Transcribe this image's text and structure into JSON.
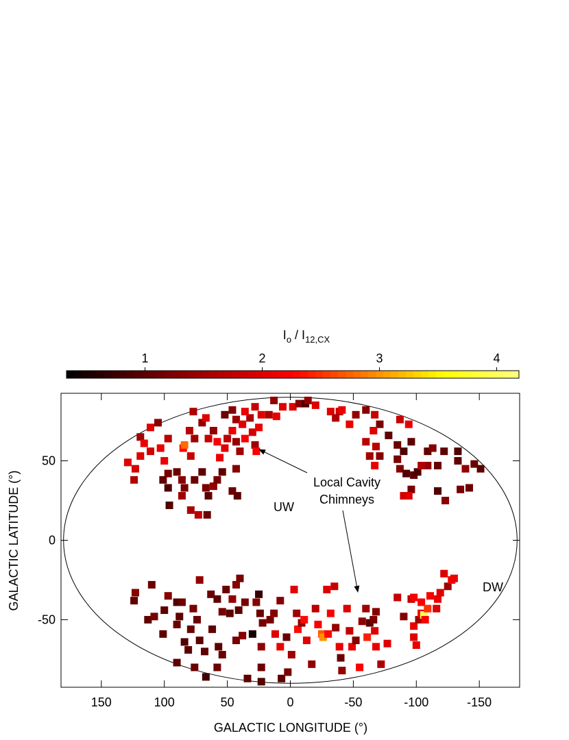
{
  "chart_data": {
    "type": "scatter",
    "colorbar_label": {
      "main1": "I",
      "sub1": "o",
      "main2": " / I",
      "sub2": "12,CX"
    },
    "clim": [
      0.33,
      4.19
    ],
    "cticks": [
      1,
      2,
      3,
      4
    ],
    "colormap": [
      "#000000",
      "#5a0000",
      "#b00000",
      "#ff0000",
      "#ff8000",
      "#ffff00",
      "#ffff80"
    ],
    "xlabel": "GALACTIC LONGITUDE (°)",
    "ylabel": "GALACTIC LATITUDE (°)",
    "xlim": [
      182,
      -182
    ],
    "ylim": [
      -92.5,
      92.5
    ],
    "xticks": [
      150,
      100,
      50,
      0,
      -50,
      -100,
      -150
    ],
    "yticks": [
      50,
      0,
      -50
    ],
    "annotations": [
      "Local Cavity",
      "Chimneys",
      "UW",
      "DW"
    ],
    "x": [
      129,
      123,
      124,
      119,
      119,
      116,
      111,
      105,
      111,
      103,
      97,
      100,
      97,
      101,
      97,
      96,
      90,
      86,
      84,
      86,
      79,
      73,
      66,
      76,
      70,
      67,
      61,
      65,
      58,
      54,
      85,
      84,
      79,
      76,
      80,
      77,
      70,
      67,
      61,
      58,
      65,
      56,
      52,
      50,
      52,
      46,
      43,
      46,
      38,
      43,
      40,
      43,
      46,
      42,
      36,
      32,
      30,
      28,
      27,
      25,
      23,
      28,
      36,
      17,
      13,
      11,
      6,
      -2,
      -7,
      -12,
      -14,
      -20,
      -32,
      -39,
      -36,
      -41,
      -47,
      -52,
      -60,
      -67,
      -71,
      -66,
      -60,
      -68,
      -71,
      -63,
      -67,
      -78,
      -85,
      -87,
      -94,
      -96,
      -90,
      -85,
      -87,
      -92,
      -98,
      -101,
      -96,
      -90,
      -94,
      -109,
      -113,
      -117,
      -109,
      -104,
      -122,
      -133,
      -133,
      -139,
      -146,
      -151,
      -142,
      -135,
      -123,
      -117,
      123,
      124,
      110,
      113,
      108,
      100,
      97,
      101,
      90,
      88,
      90,
      86,
      77,
      72,
      74,
      79,
      84,
      81,
      72,
      68,
      90,
      76,
      67,
      62,
      63,
      58,
      54,
      51,
      48,
      57,
      58,
      54,
      46,
      43,
      40,
      43,
      41,
      38,
      36,
      34,
      30,
      27,
      25,
      24,
      22,
      23,
      23,
      23,
      16,
      13,
      12,
      8,
      8,
      7,
      3,
      2,
      -1,
      -3,
      -5,
      -6,
      -9,
      -11,
      -13,
      -17,
      -20,
      -22,
      -25,
      -26,
      -29,
      -30,
      -32,
      -35,
      -36,
      -39,
      -40,
      -41,
      -45,
      -47,
      -49,
      -52,
      -55,
      -57,
      -60,
      -61,
      -63,
      -66,
      -67,
      -68,
      -72,
      -77,
      -68,
      -85,
      -90,
      -96,
      -98,
      -98,
      -98,
      -100,
      -102,
      -104,
      -106,
      -104,
      -107,
      -109,
      -111,
      -116,
      -117,
      -119,
      -122,
      -125,
      -128,
      -130
    ],
    "y": [
      49,
      45,
      38,
      53,
      65,
      61,
      71,
      74,
      56,
      58,
      64,
      50,
      42,
      38,
      33,
      22,
      43,
      38,
      33,
      28,
      19,
      16,
      16,
      38,
      43,
      33,
      34,
      28,
      38,
      43,
      58,
      60,
      53,
      64,
      69,
      81,
      74,
      77,
      69,
      62,
      64,
      52,
      58,
      64,
      79,
      82,
      76,
      69,
      73,
      62,
      56,
      45,
      31,
      28,
      64,
      77,
      68,
      60,
      56,
      71,
      79,
      84,
      81,
      79,
      88,
      78,
      84,
      84,
      86,
      86,
      88,
      85,
      81,
      81,
      77,
      82,
      73,
      79,
      82,
      79,
      73,
      69,
      62,
      59,
      53,
      53,
      47,
      66,
      60,
      76,
      73,
      62,
      56,
      51,
      45,
      42,
      41,
      43,
      32,
      28,
      28,
      56,
      58,
      47,
      47,
      47,
      56,
      56,
      50,
      45,
      48,
      45,
      33,
      32,
      25,
      31,
      -33,
      -38,
      -28,
      -50,
      -48,
      -44,
      -35,
      -59,
      -39,
      -48,
      -53,
      -39,
      -43,
      -25,
      -50,
      -56,
      -64,
      -69,
      -63,
      -70,
      -77,
      -80,
      -86,
      -56,
      -34,
      -37,
      -45,
      -31,
      -46,
      -67,
      -80,
      -72,
      -37,
      -28,
      -24,
      -63,
      -44,
      -60,
      -39,
      -87,
      -59,
      -39,
      -34,
      -46,
      -52,
      -67,
      -80,
      -89,
      -50,
      -46,
      -59,
      -38,
      -67,
      -87,
      -61,
      -83,
      -72,
      -31,
      -46,
      -56,
      -52,
      -50,
      -63,
      -78,
      -43,
      -53,
      -59,
      -61,
      -31,
      -59,
      -46,
      -29,
      -55,
      -67,
      -74,
      -82,
      -43,
      -57,
      -67,
      -63,
      -80,
      -51,
      -43,
      -61,
      -52,
      -50,
      -57,
      -67,
      -78,
      -65,
      -45,
      -36,
      -48,
      -37,
      -36,
      -54,
      -61,
      -66,
      -50,
      -46,
      -47,
      -39,
      -50,
      -43,
      -35,
      -43,
      -37,
      -33,
      -21,
      -29,
      -25,
      -24
    ],
    "values": [
      2.0,
      1.9,
      1.6,
      2.0,
      1.5,
      2.1,
      2.0,
      1.3,
      1.9,
      2.1,
      1.7,
      2.1,
      1.2,
      1.0,
      0.9,
      0.9,
      1.1,
      1.3,
      1.2,
      1.5,
      1.6,
      1.7,
      1.1,
      1.1,
      1.0,
      1.2,
      1.4,
      1.0,
      1.2,
      1.0,
      2.3,
      2.8,
      1.8,
      1.5,
      1.7,
      1.6,
      1.4,
      2.0,
      1.4,
      2.2,
      1.8,
      2.1,
      2.0,
      1.7,
      1.1,
      1.3,
      1.5,
      2.1,
      2.0,
      1.4,
      1.5,
      1.3,
      1.1,
      1.0,
      2.2,
      1.6,
      1.9,
      1.5,
      2.2,
      2.1,
      2.0,
      1.8,
      2.1,
      1.6,
      1.4,
      2.1,
      2.0,
      2.0,
      1.3,
      0.9,
      1.4,
      2.0,
      2.0,
      1.8,
      1.6,
      2.1,
      2.1,
      1.4,
      1.3,
      1.8,
      1.2,
      2.0,
      1.7,
      1.7,
      1.3,
      1.5,
      2.1,
      1.0,
      1.1,
      1.8,
      2.1,
      1.0,
      0.9,
      1.2,
      1.3,
      0.9,
      1.0,
      0.9,
      1.2,
      1.9,
      2.0,
      1.0,
      1.3,
      1.1,
      1.4,
      1.6,
      1.0,
      0.9,
      1.0,
      1.4,
      1.1,
      1.0,
      1.1,
      1.2,
      1.3,
      0.9,
      1.3,
      1.0,
      1.1,
      1.0,
      1.2,
      1.0,
      1.3,
      1.0,
      0.9,
      1.0,
      1.1,
      1.1,
      1.2,
      1.4,
      1.1,
      1.1,
      0.9,
      1.0,
      1.0,
      1.0,
      1.0,
      1.1,
      0.8,
      1.0,
      1.1,
      1.0,
      1.2,
      1.1,
      1.0,
      1.0,
      1.1,
      1.1,
      1.4,
      1.3,
      1.2,
      1.2,
      1.0,
      1.3,
      1.2,
      1.0,
      0.5,
      1.3,
      0.7,
      1.1,
      1.2,
      1.4,
      1.1,
      0.9,
      1.2,
      1.3,
      2.0,
      1.3,
      2.1,
      1.0,
      1.1,
      1.2,
      1.5,
      2.0,
      1.5,
      2.3,
      1.4,
      2.3,
      2.0,
      1.4,
      1.7,
      2.2,
      2.7,
      3.0,
      2.0,
      2.3,
      2.2,
      1.8,
      1.4,
      2.1,
      1.1,
      1.4,
      2.0,
      1.8,
      2.1,
      1.3,
      2.2,
      1.4,
      1.5,
      2.4,
      1.0,
      1.2,
      2.0,
      2.1,
      1.6,
      2.0,
      1.3,
      1.8,
      1.3,
      1.7,
      2.2,
      2.1,
      2.0,
      2.1,
      1.5,
      2.1,
      4.0,
      2.2,
      2.2,
      2.5,
      2.2,
      2.0,
      2.1,
      2.0,
      2.0,
      1.5,
      2.2,
      2.1
    ]
  }
}
